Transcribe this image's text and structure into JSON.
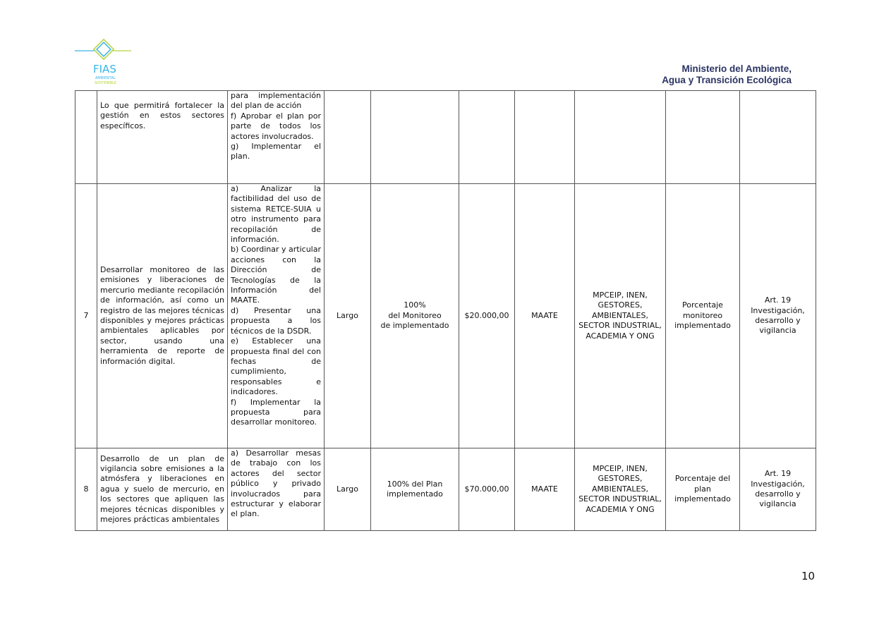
{
  "header": {
    "logo_text": "FIAS AMBIENTAL SOSTENIBLE",
    "ministry_line1": "Ministerio del Ambiente,",
    "ministry_line2": "Agua y Transición Ecológica"
  },
  "rows": [
    {
      "num": "",
      "objective": "Lo que permitirá fortalecer la gestión en estos sectores específicos.",
      "activities": "para implementación del plan de acción\nf) Aprobar el plan por parte de todos los actores involucrados.\ng) Implementar el plan.",
      "term": "",
      "goal": "",
      "budget": "",
      "responsible": "",
      "co_responsible": "",
      "indicator": "",
      "legal": ""
    },
    {
      "num": "7",
      "objective": "Desarrollar monitoreo de las emisiones y liberaciones de mercurio mediante recopilación de información, así como un registro de las mejores técnicas disponibles y mejores prácticas ambientales aplicables por sector, usando una herramienta de reporte de información digital.",
      "activities": "a) Analizar la factibilidad del uso de sistema RETCE-SUIA u otro instrumento para recopilación de información.\nb) Coordinar y articular acciones con la Dirección de Tecnologías de la Información del MAATE.\nd) Presentar una propuesta a los técnicos de la DSDR.\ne) Establecer una propuesta final del con fechas de cumplimiento, responsables e indicadores.\nf) Implementar la propuesta para desarrollar monitoreo.",
      "term": "Largo",
      "goal": "100%\ndel Monitoreo\nde implementado",
      "budget": "$20.000,00",
      "responsible": "MAATE",
      "co_responsible": "MPCEIP, INEN, GESTORES, AMBIENTALES, SECTOR INDUSTRIAL, ACADEMIA Y ONG",
      "indicator": "Porcentaje monitoreo implementado",
      "legal": "Art. 19\nInvestigación, desarrollo y vigilancia"
    },
    {
      "num": "8",
      "objective": "Desarrollo de un plan de vigilancia sobre emisiones a la atmósfera y liberaciones en agua y suelo de mercurio, en los sectores que apliquen las mejores técnicas disponibles y mejores prácticas ambientales",
      "activities": "a) Desarrollar mesas de trabajo con los actores del sector público y privado involucrados para estructurar y elaborar el plan.",
      "term": "Largo",
      "goal": "100% del Plan implementado",
      "budget": "$70.000,00",
      "responsible": "MAATE",
      "co_responsible": "MPCEIP, INEN, GESTORES, AMBIENTALES, SECTOR INDUSTRIAL, ACADEMIA Y ONG",
      "indicator": "Porcentaje del plan implementado",
      "legal": "Art. 19\nInvestigación, desarrollo y vigilancia"
    }
  ],
  "footer": {
    "page_number": "10"
  }
}
